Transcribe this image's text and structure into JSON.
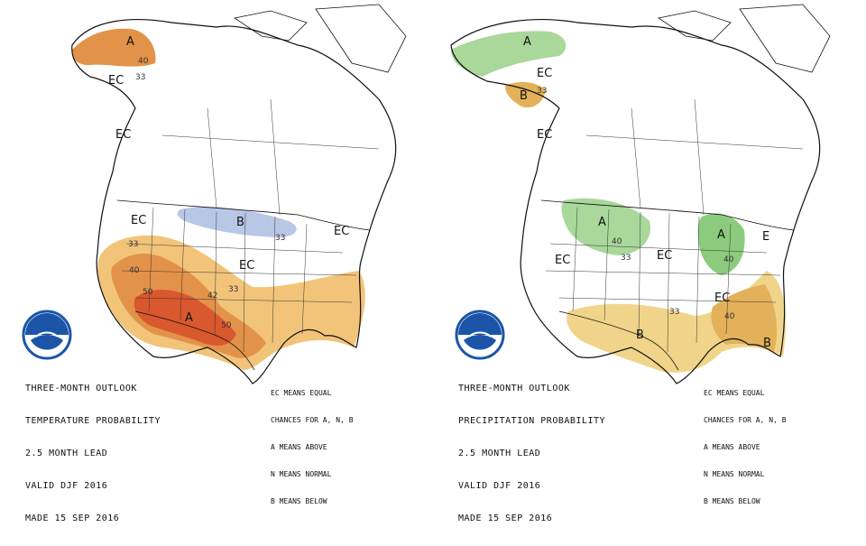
{
  "colors": {
    "above_light": "#f2c47a",
    "above_mid": "#e3924a",
    "above_dark": "#d9582e",
    "below_light": "#b9c7e6",
    "wet_light": "#a9d89a",
    "wet_mid": "#8ccb7e",
    "dry_light": "#f0d48a",
    "dry_mid": "#e2b15a",
    "outline": "#111111",
    "noaa_blue": "#1c55a8"
  },
  "temperature_panel": {
    "title_lines": [
      "THREE-MONTH OUTLOOK",
      "TEMPERATURE PROBABILITY",
      "2.5 MONTH LEAD",
      "VALID DJF 2016",
      "MADE 15 SEP 2016"
    ],
    "legend_lines": [
      "EC MEANS EQUAL",
      "CHANCES FOR A, N, B",
      "A MEANS ABOVE",
      "N MEANS NORMAL",
      "B MEANS BELOW"
    ],
    "labels": {
      "alaska_a": "A",
      "alaska_40": "40",
      "alaska_33": "33",
      "alaska_ec": "EC",
      "bc_ec": "EC",
      "west_ec": "EC",
      "plains_b": "B",
      "plains_33": "33",
      "east_ec": "EC",
      "central_ec": "EC",
      "sw_33": "33",
      "sw_40": "40",
      "sw_50": "50",
      "sw_a": "A",
      "tx_50": "50",
      "sw_42": "42",
      "se_33": "33"
    }
  },
  "precipitation_panel": {
    "title_lines": [
      "THREE-MONTH OUTLOOK",
      "PRECIPITATION PROBABILITY",
      "2.5 MONTH LEAD",
      "VALID DJF 2016",
      "MADE 15 SEP 2016"
    ],
    "legend_lines": [
      "EC MEANS EQUAL",
      "CHANCES FOR A, N, B",
      "A MEANS ABOVE",
      "N MEANS NORMAL",
      "B MEANS BELOW"
    ],
    "labels": {
      "alaska_a": "A",
      "alaska_ec": "EC",
      "alaska_b": "B",
      "alaska_33": "33",
      "bc_ec": "EC",
      "plains_a": "A",
      "plains_40": "40",
      "plains_33": "33",
      "west_ec": "EC",
      "central_ec": "EC",
      "lakes_a": "A",
      "lakes_40": "40",
      "east_e": "E",
      "se_ec": "EC",
      "south_b": "B",
      "south_33": "33",
      "se_40": "40",
      "fl_b": "B"
    }
  }
}
